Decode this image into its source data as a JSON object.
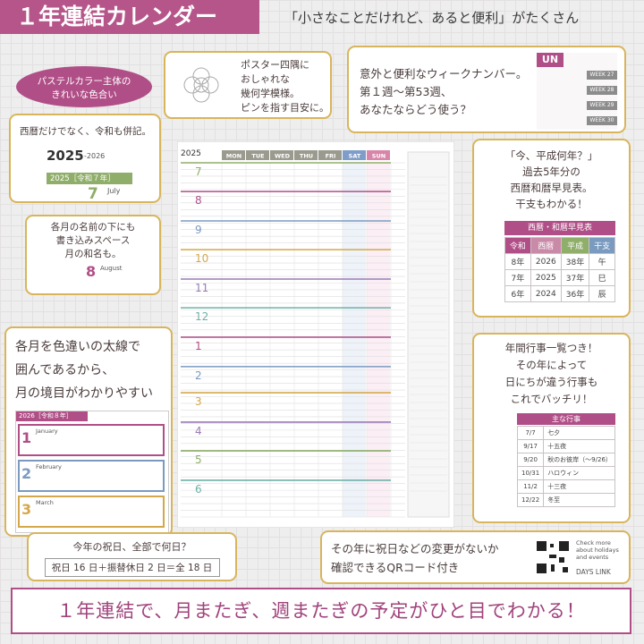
{
  "header": {
    "title": "１年連結カレンダー",
    "tagline": "「小さなことだけれど、あると便利」がたくさん"
  },
  "badge": {
    "lines": [
      "パステルカラー主体の",
      "きれいな色合い"
    ]
  },
  "corners": {
    "lines": [
      "ポスター四隅に",
      "おしゃれな",
      "幾何学模様。",
      "ピンを指す目安に。"
    ]
  },
  "week_number": {
    "lines": [
      "意外と便利なウィークナンバー。",
      "第１週〜第53週、",
      "あなたならどう使う？"
    ],
    "tab": "UN",
    "weeks": [
      "WEEK 27",
      "WEEK 28",
      "WEEK 29",
      "WEEK 30"
    ]
  },
  "era": {
    "lines": [
      "西暦だけでなく、令和も併記。"
    ],
    "year": "2025",
    "next_year": "-2026",
    "label": "2025［令和７年］",
    "month": "7",
    "month_name": "July"
  },
  "month_names": {
    "lines": [
      "各月の名前の下にも",
      "書き込みスペース",
      "月の和名も。"
    ],
    "month": "8",
    "month_name": "August"
  },
  "era_table": {
    "lines": [
      "「今、平成何年？」",
      "過去5年分の",
      "西暦和暦早見表。",
      "干支もわかる！"
    ],
    "title": "西暦・和暦早見表",
    "columns": [
      "令和",
      "西暦",
      "平成",
      "干支"
    ],
    "rows": [
      [
        "8年",
        "2026",
        "38年",
        "午"
      ],
      [
        "7年",
        "2025",
        "37年",
        "巳"
      ],
      [
        "6年",
        "2024",
        "36年",
        "辰"
      ]
    ]
  },
  "borders": {
    "lines": [
      "各月を色違いの太線で",
      "囲んであるから、",
      "月の境目がわかりやすい"
    ],
    "label": "2026［令和８年］",
    "months": [
      "1",
      "2",
      "3"
    ],
    "month_names": [
      "January",
      "February",
      "March"
    ]
  },
  "events": {
    "lines": [
      "年間行事一覧つき！",
      "その年によって",
      "日にちが違う行事も",
      "これでバッチリ！"
    ],
    "title": "主な行事",
    "rows": [
      [
        "7/7",
        "七夕"
      ],
      [
        "9/17",
        "十五夜"
      ],
      [
        "9/20",
        "秋のお彼岸（〜9/26）"
      ],
      [
        "10/31",
        "ハロウィン"
      ],
      [
        "11/2",
        "十三夜"
      ],
      [
        "12/22",
        "冬至"
      ]
    ]
  },
  "holidays": {
    "question": "今年の祝日、全部で何日？",
    "answer": "祝日 16 日＋振替休日 2 日＝全 18 日"
  },
  "qr": {
    "lines": [
      "その年に祝日などの変更がないか",
      "確認できるQRコード付き"
    ],
    "caption": "Check more about holidays and events",
    "brand": "DAYS LINK"
  },
  "footer": "１年連結で、月またぎ、週またぎの予定がひと目でわかる！",
  "calendar": {
    "year": "2025",
    "weekdays": [
      "MON",
      "TUE",
      "WED",
      "THU",
      "FRI",
      "SAT",
      "SUN"
    ],
    "months": [
      "7",
      "8",
      "9",
      "10",
      "11",
      "12",
      "1",
      "2",
      "3",
      "4",
      "5",
      "6"
    ]
  }
}
